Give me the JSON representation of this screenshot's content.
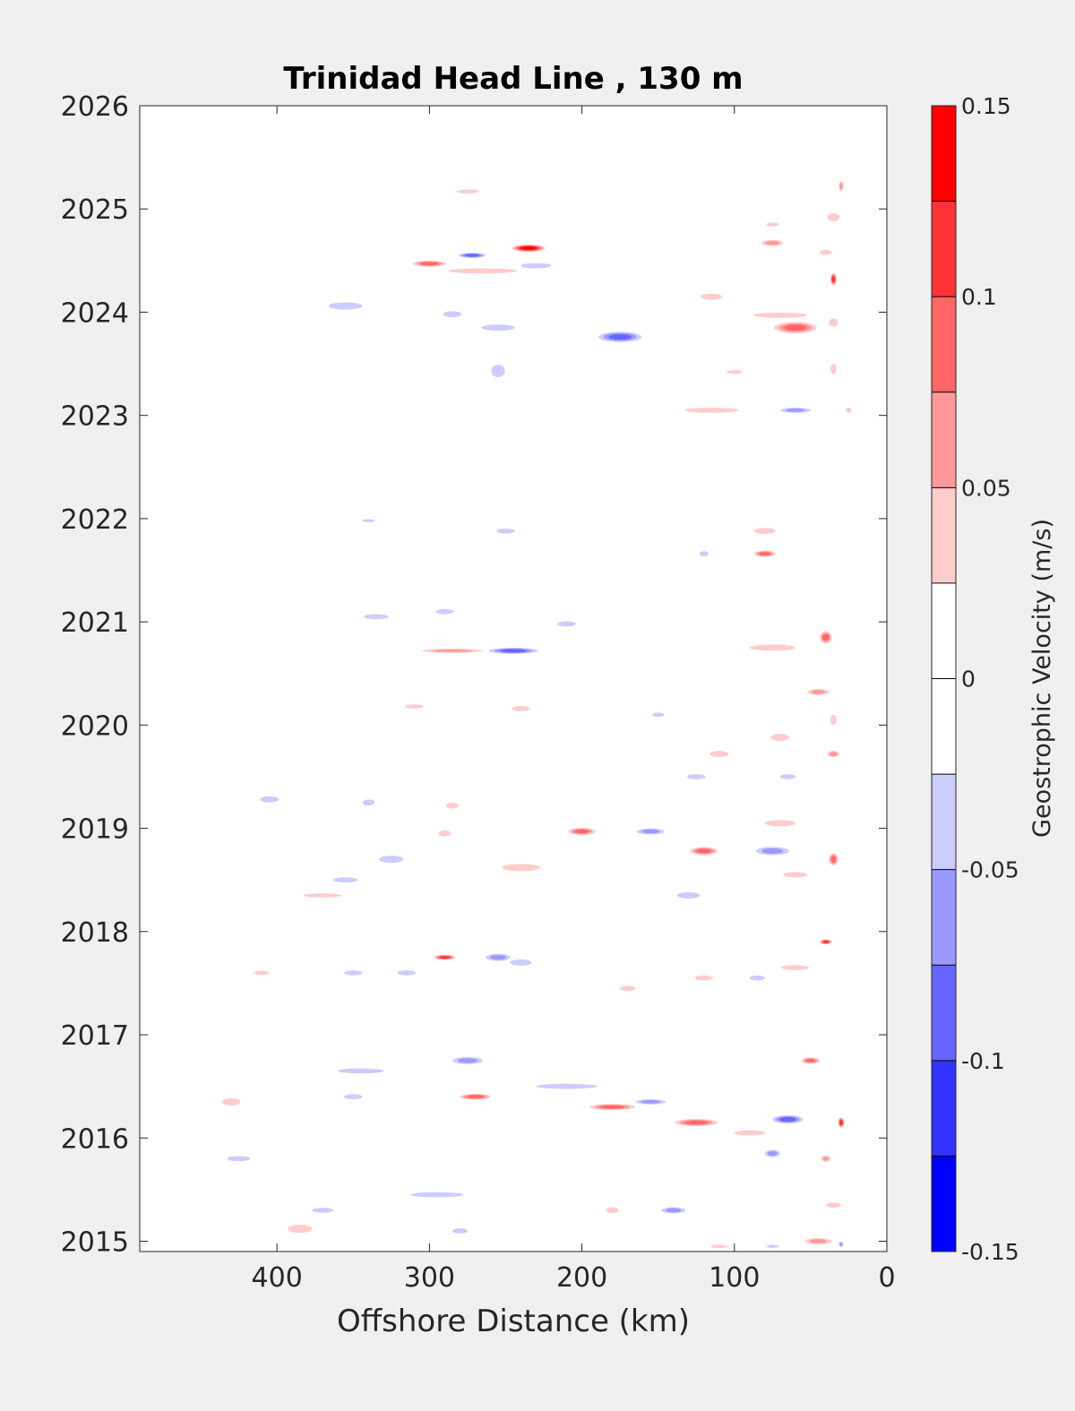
{
  "chart_data": {
    "type": "heatmap",
    "title": "Trinidad Head Line , 130 m",
    "xlabel": "Offshore Distance (km)",
    "ylabel": "",
    "xlim": [
      490,
      0
    ],
    "x_reversed": true,
    "ylim": [
      2014.9,
      2026
    ],
    "xticks": [
      400,
      300,
      200,
      100,
      0
    ],
    "yticks": [
      2015,
      2016,
      2017,
      2018,
      2019,
      2020,
      2021,
      2022,
      2023,
      2024,
      2025,
      2026
    ],
    "colorbar": {
      "label": "Geostrophic Velocity (m/s)",
      "range": [
        -0.15,
        0.15
      ],
      "ticks": [
        0.15,
        0.1,
        0.05,
        0,
        -0.05,
        -0.1,
        -0.15
      ],
      "tick_labels": [
        "0.15",
        "0.1",
        "0.05",
        "0",
        "-0.05",
        "-0.1",
        "-0.15"
      ],
      "levels": [
        {
          "from": 0.125,
          "to": 0.15,
          "color": "#ff0000"
        },
        {
          "from": 0.1,
          "to": 0.125,
          "color": "#ff3333"
        },
        {
          "from": 0.075,
          "to": 0.1,
          "color": "#ff6666"
        },
        {
          "from": 0.05,
          "to": 0.075,
          "color": "#ff9999"
        },
        {
          "from": 0.025,
          "to": 0.05,
          "color": "#ffcccc"
        },
        {
          "from": 0,
          "to": 0.025,
          "color": "#ffffff"
        },
        {
          "from": -0.025,
          "to": 0,
          "color": "#ffffff"
        },
        {
          "from": -0.05,
          "to": -0.025,
          "color": "#ccccff"
        },
        {
          "from": -0.075,
          "to": -0.05,
          "color": "#9999ff"
        },
        {
          "from": -0.1,
          "to": -0.075,
          "color": "#6666ff"
        },
        {
          "from": -0.125,
          "to": -0.1,
          "color": "#3333ff"
        },
        {
          "from": -0.15,
          "to": -0.125,
          "color": "#0000ff"
        }
      ]
    },
    "features": [
      {
        "x": 235,
        "y": 2024.62,
        "w": 22,
        "h": 0.07,
        "v": 0.14
      },
      {
        "x": 272,
        "y": 2024.55,
        "w": 18,
        "h": 0.05,
        "v": -0.09
      },
      {
        "x": 300,
        "y": 2024.47,
        "w": 22,
        "h": 0.06,
        "v": 0.075
      },
      {
        "x": 265,
        "y": 2024.4,
        "w": 45,
        "h": 0.05,
        "v": 0.04
      },
      {
        "x": 230,
        "y": 2024.45,
        "w": 20,
        "h": 0.05,
        "v": -0.04
      },
      {
        "x": 275,
        "y": 2025.17,
        "w": 15,
        "h": 0.04,
        "v": 0.04
      },
      {
        "x": 30,
        "y": 2025.22,
        "w": 3,
        "h": 0.1,
        "v": 0.05
      },
      {
        "x": 35,
        "y": 2024.32,
        "w": 4,
        "h": 0.12,
        "v": 0.1
      },
      {
        "x": 35,
        "y": 2024.92,
        "w": 8,
        "h": 0.08,
        "v": 0.04
      },
      {
        "x": 75,
        "y": 2024.67,
        "w": 14,
        "h": 0.06,
        "v": 0.06
      },
      {
        "x": 40,
        "y": 2024.58,
        "w": 8,
        "h": 0.05,
        "v": 0.04
      },
      {
        "x": 75,
        "y": 2024.85,
        "w": 8,
        "h": 0.04,
        "v": 0.04
      },
      {
        "x": 60,
        "y": 2023.85,
        "w": 28,
        "h": 0.11,
        "v": 0.075
      },
      {
        "x": 70,
        "y": 2023.97,
        "w": 35,
        "h": 0.05,
        "v": 0.04
      },
      {
        "x": 115,
        "y": 2024.15,
        "w": 14,
        "h": 0.06,
        "v": 0.04
      },
      {
        "x": 35,
        "y": 2023.9,
        "w": 6,
        "h": 0.08,
        "v": 0.04
      },
      {
        "x": 35,
        "y": 2023.45,
        "w": 4,
        "h": 0.1,
        "v": 0.04
      },
      {
        "x": 100,
        "y": 2023.42,
        "w": 10,
        "h": 0.04,
        "v": 0.04
      },
      {
        "x": 175,
        "y": 2023.76,
        "w": 28,
        "h": 0.1,
        "v": -0.09
      },
      {
        "x": 255,
        "y": 2023.85,
        "w": 22,
        "h": 0.06,
        "v": -0.04
      },
      {
        "x": 355,
        "y": 2024.06,
        "w": 22,
        "h": 0.07,
        "v": -0.04
      },
      {
        "x": 285,
        "y": 2023.98,
        "w": 12,
        "h": 0.06,
        "v": -0.04
      },
      {
        "x": 255,
        "y": 2023.43,
        "w": 9,
        "h": 0.12,
        "v": -0.04
      },
      {
        "x": 115,
        "y": 2023.05,
        "w": 35,
        "h": 0.05,
        "v": 0.04
      },
      {
        "x": 60,
        "y": 2023.05,
        "w": 20,
        "h": 0.05,
        "v": -0.075
      },
      {
        "x": 25,
        "y": 2023.05,
        "w": 4,
        "h": 0.05,
        "v": 0.04
      },
      {
        "x": 340,
        "y": 2021.98,
        "w": 8,
        "h": 0.03,
        "v": -0.04
      },
      {
        "x": 250,
        "y": 2021.88,
        "w": 12,
        "h": 0.05,
        "v": -0.04
      },
      {
        "x": 80,
        "y": 2021.88,
        "w": 14,
        "h": 0.06,
        "v": 0.04
      },
      {
        "x": 80,
        "y": 2021.66,
        "w": 14,
        "h": 0.06,
        "v": 0.075
      },
      {
        "x": 120,
        "y": 2021.66,
        "w": 6,
        "h": 0.05,
        "v": -0.04
      },
      {
        "x": 285,
        "y": 2020.72,
        "w": 40,
        "h": 0.04,
        "v": 0.06
      },
      {
        "x": 245,
        "y": 2020.72,
        "w": 32,
        "h": 0.06,
        "v": -0.09
      },
      {
        "x": 335,
        "y": 2021.05,
        "w": 16,
        "h": 0.05,
        "v": -0.04
      },
      {
        "x": 210,
        "y": 2020.98,
        "w": 12,
        "h": 0.05,
        "v": -0.04
      },
      {
        "x": 290,
        "y": 2021.1,
        "w": 12,
        "h": 0.05,
        "v": -0.04
      },
      {
        "x": 75,
        "y": 2020.75,
        "w": 30,
        "h": 0.06,
        "v": 0.04
      },
      {
        "x": 40,
        "y": 2020.85,
        "w": 8,
        "h": 0.12,
        "v": 0.075
      },
      {
        "x": 45,
        "y": 2020.32,
        "w": 14,
        "h": 0.06,
        "v": 0.06
      },
      {
        "x": 35,
        "y": 2020.05,
        "w": 4,
        "h": 0.1,
        "v": 0.04
      },
      {
        "x": 35,
        "y": 2019.72,
        "w": 8,
        "h": 0.06,
        "v": 0.06
      },
      {
        "x": 70,
        "y": 2019.88,
        "w": 12,
        "h": 0.07,
        "v": 0.04
      },
      {
        "x": 110,
        "y": 2019.72,
        "w": 12,
        "h": 0.06,
        "v": 0.04
      },
      {
        "x": 150,
        "y": 2020.1,
        "w": 8,
        "h": 0.04,
        "v": -0.04
      },
      {
        "x": 240,
        "y": 2020.16,
        "w": 12,
        "h": 0.05,
        "v": 0.04
      },
      {
        "x": 310,
        "y": 2020.18,
        "w": 12,
        "h": 0.04,
        "v": 0.04
      },
      {
        "x": 290,
        "y": 2018.95,
        "w": 8,
        "h": 0.06,
        "v": 0.04
      },
      {
        "x": 200,
        "y": 2018.97,
        "w": 18,
        "h": 0.07,
        "v": 0.075
      },
      {
        "x": 155,
        "y": 2018.97,
        "w": 18,
        "h": 0.06,
        "v": -0.075
      },
      {
        "x": 120,
        "y": 2018.78,
        "w": 18,
        "h": 0.08,
        "v": 0.075
      },
      {
        "x": 75,
        "y": 2018.78,
        "w": 22,
        "h": 0.08,
        "v": -0.075
      },
      {
        "x": 70,
        "y": 2019.05,
        "w": 20,
        "h": 0.06,
        "v": 0.04
      },
      {
        "x": 35,
        "y": 2018.7,
        "w": 6,
        "h": 0.12,
        "v": 0.075
      },
      {
        "x": 125,
        "y": 2019.5,
        "w": 12,
        "h": 0.05,
        "v": -0.04
      },
      {
        "x": 65,
        "y": 2019.5,
        "w": 10,
        "h": 0.05,
        "v": -0.04
      },
      {
        "x": 325,
        "y": 2018.7,
        "w": 16,
        "h": 0.07,
        "v": -0.04
      },
      {
        "x": 240,
        "y": 2018.62,
        "w": 25,
        "h": 0.07,
        "v": 0.04
      },
      {
        "x": 355,
        "y": 2018.5,
        "w": 16,
        "h": 0.05,
        "v": -0.04
      },
      {
        "x": 370,
        "y": 2018.35,
        "w": 25,
        "h": 0.04,
        "v": 0.04
      },
      {
        "x": 405,
        "y": 2019.28,
        "w": 12,
        "h": 0.06,
        "v": -0.04
      },
      {
        "x": 340,
        "y": 2019.25,
        "w": 8,
        "h": 0.06,
        "v": -0.04
      },
      {
        "x": 285,
        "y": 2019.22,
        "w": 8,
        "h": 0.06,
        "v": 0.04
      },
      {
        "x": 130,
        "y": 2018.35,
        "w": 15,
        "h": 0.06,
        "v": -0.04
      },
      {
        "x": 60,
        "y": 2018.55,
        "w": 16,
        "h": 0.05,
        "v": 0.04
      },
      {
        "x": 290,
        "y": 2017.75,
        "w": 14,
        "h": 0.05,
        "v": 0.11
      },
      {
        "x": 255,
        "y": 2017.75,
        "w": 16,
        "h": 0.07,
        "v": -0.075
      },
      {
        "x": 40,
        "y": 2017.9,
        "w": 8,
        "h": 0.05,
        "v": 0.1
      },
      {
        "x": 350,
        "y": 2017.6,
        "w": 12,
        "h": 0.05,
        "v": -0.04
      },
      {
        "x": 315,
        "y": 2017.6,
        "w": 12,
        "h": 0.05,
        "v": -0.04
      },
      {
        "x": 410,
        "y": 2017.6,
        "w": 10,
        "h": 0.04,
        "v": 0.04
      },
      {
        "x": 240,
        "y": 2017.7,
        "w": 14,
        "h": 0.06,
        "v": -0.04
      },
      {
        "x": 170,
        "y": 2017.45,
        "w": 10,
        "h": 0.05,
        "v": 0.04
      },
      {
        "x": 120,
        "y": 2017.55,
        "w": 12,
        "h": 0.05,
        "v": 0.04
      },
      {
        "x": 85,
        "y": 2017.55,
        "w": 10,
        "h": 0.05,
        "v": -0.04
      },
      {
        "x": 60,
        "y": 2017.65,
        "w": 18,
        "h": 0.05,
        "v": 0.04
      },
      {
        "x": 275,
        "y": 2016.75,
        "w": 20,
        "h": 0.07,
        "v": -0.075
      },
      {
        "x": 345,
        "y": 2016.65,
        "w": 30,
        "h": 0.05,
        "v": -0.04
      },
      {
        "x": 270,
        "y": 2016.4,
        "w": 20,
        "h": 0.06,
        "v": 0.075
      },
      {
        "x": 210,
        "y": 2016.5,
        "w": 40,
        "h": 0.05,
        "v": -0.04
      },
      {
        "x": 180,
        "y": 2016.3,
        "w": 30,
        "h": 0.06,
        "v": 0.075
      },
      {
        "x": 155,
        "y": 2016.35,
        "w": 20,
        "h": 0.05,
        "v": -0.075
      },
      {
        "x": 125,
        "y": 2016.15,
        "w": 28,
        "h": 0.07,
        "v": 0.09
      },
      {
        "x": 90,
        "y": 2016.05,
        "w": 20,
        "h": 0.05,
        "v": 0.04
      },
      {
        "x": 65,
        "y": 2016.18,
        "w": 20,
        "h": 0.08,
        "v": -0.09
      },
      {
        "x": 75,
        "y": 2015.85,
        "w": 10,
        "h": 0.07,
        "v": -0.075
      },
      {
        "x": 40,
        "y": 2015.8,
        "w": 6,
        "h": 0.06,
        "v": 0.06
      },
      {
        "x": 30,
        "y": 2016.15,
        "w": 4,
        "h": 0.1,
        "v": 0.1
      },
      {
        "x": 50,
        "y": 2016.75,
        "w": 12,
        "h": 0.06,
        "v": 0.075
      },
      {
        "x": 430,
        "y": 2016.35,
        "w": 12,
        "h": 0.07,
        "v": 0.04
      },
      {
        "x": 350,
        "y": 2016.4,
        "w": 12,
        "h": 0.05,
        "v": -0.04
      },
      {
        "x": 425,
        "y": 2015.8,
        "w": 15,
        "h": 0.05,
        "v": -0.04
      },
      {
        "x": 295,
        "y": 2015.45,
        "w": 35,
        "h": 0.05,
        "v": -0.04
      },
      {
        "x": 140,
        "y": 2015.3,
        "w": 16,
        "h": 0.06,
        "v": -0.075
      },
      {
        "x": 370,
        "y": 2015.3,
        "w": 14,
        "h": 0.05,
        "v": -0.04
      },
      {
        "x": 385,
        "y": 2015.12,
        "w": 16,
        "h": 0.08,
        "v": 0.04
      },
      {
        "x": 280,
        "y": 2015.1,
        "w": 10,
        "h": 0.05,
        "v": -0.04
      },
      {
        "x": 180,
        "y": 2015.3,
        "w": 8,
        "h": 0.06,
        "v": 0.04
      },
      {
        "x": 45,
        "y": 2015.0,
        "w": 18,
        "h": 0.06,
        "v": 0.06
      },
      {
        "x": 35,
        "y": 2015.35,
        "w": 10,
        "h": 0.05,
        "v": 0.04
      },
      {
        "x": 30,
        "y": 2014.97,
        "w": 3,
        "h": 0.05,
        "v": -0.075
      },
      {
        "x": 110,
        "y": 2014.95,
        "w": 12,
        "h": 0.03,
        "v": 0.04
      },
      {
        "x": 75,
        "y": 2014.95,
        "w": 8,
        "h": 0.03,
        "v": -0.04
      }
    ]
  }
}
